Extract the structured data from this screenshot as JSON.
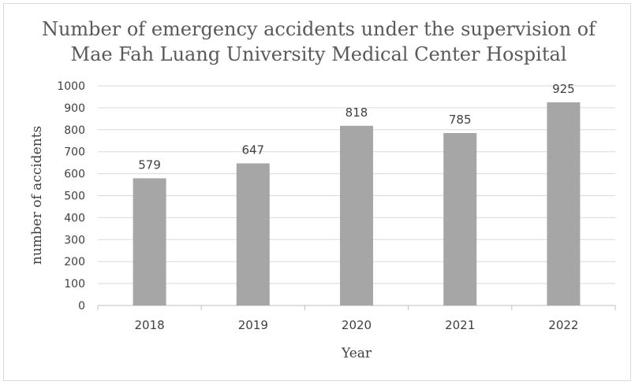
{
  "chart_data": {
    "type": "bar",
    "title_lines": [
      "Number of emergency accidents under the supervision of",
      "Mae Fah Luang University Medical Center Hospital"
    ],
    "xlabel": "Year",
    "ylabel": "number of accidents",
    "categories": [
      "2018",
      "2019",
      "2020",
      "2021",
      "2022"
    ],
    "values": [
      579,
      647,
      818,
      785,
      925
    ],
    "data_labels": [
      "579",
      "647",
      "818",
      "785",
      "925"
    ],
    "ylim": [
      0,
      1000
    ],
    "yticks": [
      0,
      100,
      200,
      300,
      400,
      500,
      600,
      700,
      800,
      900,
      1000
    ],
    "ytick_labels": [
      "0",
      "100",
      "200",
      "300",
      "400",
      "500",
      "600",
      "700",
      "800",
      "900",
      "1000"
    ],
    "grid": true,
    "bar_color": "#a6a6a6"
  }
}
